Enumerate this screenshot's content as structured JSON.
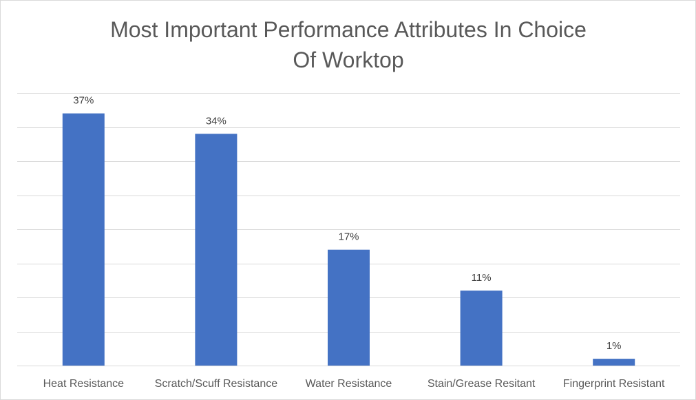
{
  "chart_data": {
    "type": "bar",
    "title_lines": [
      "Most Important Performance Attributes In Choice",
      "Of Worktop"
    ],
    "categories": [
      "Heat Resistance",
      "Scratch/Scuff Resistance",
      "Water Resistance",
      "Stain/Grease Resitant",
      "Fingerprint Resistant"
    ],
    "values": [
      37,
      34,
      17,
      11,
      1
    ],
    "data_labels": [
      "37%",
      "34%",
      "17%",
      "11%",
      "1%"
    ],
    "ylim": [
      0,
      40
    ],
    "grid": true,
    "legend": "none",
    "colors": {
      "bar": "#4472c4",
      "grid": "#d9d9d9",
      "title": "#595959",
      "label": "#404040"
    }
  }
}
